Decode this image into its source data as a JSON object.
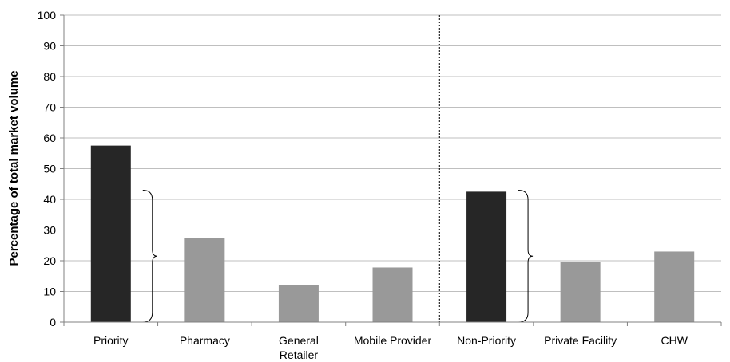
{
  "chart_data": {
    "type": "bar",
    "ylabel": "Percentage of total market volume",
    "xlabel": "",
    "ylim": [
      0,
      100
    ],
    "yticks": [
      0,
      10,
      20,
      30,
      40,
      50,
      60,
      70,
      80,
      90,
      100
    ],
    "grid": true,
    "categories": [
      "Priority",
      "Pharmacy",
      "General Retailer",
      "Mobile Provider",
      "Non-Priority",
      "Private Facility",
      "CHW"
    ],
    "category_lines": [
      [
        "Priority"
      ],
      [
        "Pharmacy"
      ],
      [
        "General",
        "Retailer"
      ],
      [
        "Mobile Provider"
      ],
      [
        "Non-Priority"
      ],
      [
        "Private Facility"
      ],
      [
        "CHW"
      ]
    ],
    "values": [
      57.5,
      27.5,
      12.2,
      17.8,
      42.5,
      19.5,
      23.0
    ],
    "bar_colors": [
      "#262626",
      "#999999",
      "#999999",
      "#999999",
      "#262626",
      "#999999",
      "#999999"
    ],
    "divider_after_category": "Mobile Provider",
    "braces": [
      {
        "next_to": "Priority",
        "from": 0,
        "to": 43
      },
      {
        "next_to": "Non-Priority",
        "from": 0,
        "to": 43
      }
    ]
  }
}
